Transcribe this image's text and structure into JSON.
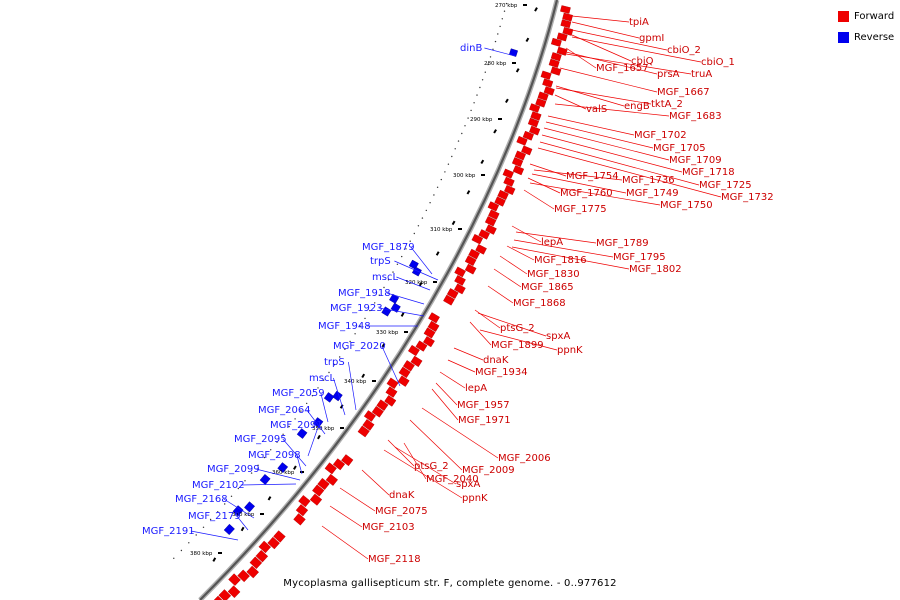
{
  "legend": {
    "forward_label": "Forward",
    "reverse_label": "Reverse",
    "forward_color": "#ee0000",
    "reverse_color": "#0000ee"
  },
  "caption": "Mycoplasma gallisepticum str. F, complete genome. - 0..977612",
  "tick_labels": [
    "270 kbp",
    "280 kbp",
    "290 kbp",
    "300 kbp",
    "310 kbp",
    "320 kbp",
    "330 kbp",
    "340 kbp",
    "350 kbp",
    "360 kbp",
    "370 kbp",
    "380 kbp"
  ],
  "forward_genes": [
    "tpiA",
    "gpmI",
    "cbiO_2",
    "cbiQ",
    "cbiO_1",
    "MGF_1657",
    "prsA",
    "truA",
    "MGF_1667",
    "engB",
    "tktA_2",
    "valS",
    "MGF_1683",
    "MGF_1702",
    "MGF_1705",
    "MGF_1709",
    "MGF_1718",
    "MGF_1725",
    "MGF_1732",
    "MGF_1754",
    "MGF_1736",
    "MGF_1749",
    "MGF_1760",
    "MGF_1750",
    "MGF_1775",
    "lepA",
    "MGF_1789",
    "MGF_1795",
    "MGF_1816",
    "MGF_1802",
    "MGF_1830",
    "MGF_1865",
    "MGF_1868",
    "ptsG_2",
    "spxA",
    "MGF_1899",
    "ppnK",
    "dnaK",
    "MGF_1934",
    "lepA",
    "MGF_1957",
    "MGF_1971",
    "MGF_2006",
    "MGF_2009",
    "ptsG_2",
    "MGF_2040",
    "spxA",
    "ppnK",
    "dnaK",
    "MGF_2075",
    "MGF_2103",
    "MGF_2118"
  ],
  "reverse_genes": [
    "dinB",
    "MGF_1879",
    "trpS",
    "mscL",
    "MGF_1918",
    "MGF_1923",
    "MGF_1948",
    "MGF_2020",
    "trpS",
    "mscL",
    "MGF_2059",
    "MGF_2064",
    "MGF_2091",
    "MGF_2095",
    "MGF_2098",
    "MGF_2099",
    "MGF_2102",
    "MGF_2168",
    "MGF_2179",
    "MGF_2191"
  ]
}
